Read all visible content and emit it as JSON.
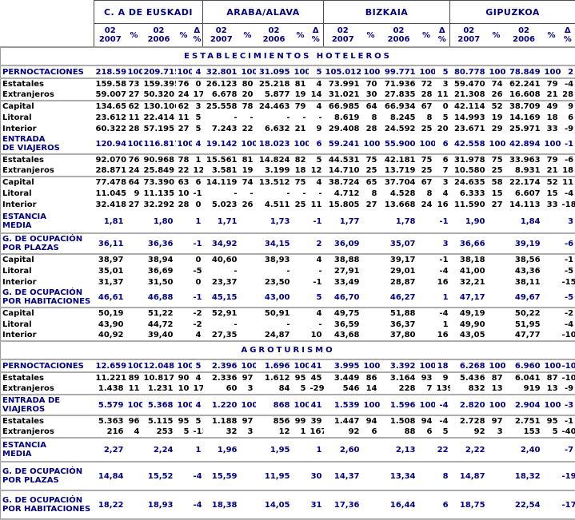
{
  "header": {
    "groups": [
      "C. A DE EUSKADI",
      "ARABA/ALAVA",
      "BIZKAIA",
      "GIPUZKOA"
    ],
    "col_2007": "02 2007",
    "col_2006": "02 2006",
    "col_pct": "%",
    "col_delta": "Δ %"
  },
  "colors": {
    "navy_text": "#000080",
    "black_text": "#000000",
    "separator_line": "#adadad",
    "header_border": "#4d4d4d"
  },
  "sections": [
    {
      "banner": "ESTABLECIMIENTOS HOTELEROS",
      "rows": [
        {
          "label": "PERNOCTACIONES",
          "style": "section",
          "sep": true,
          "cells": [
            "218.591",
            "100",
            "209.715",
            "100",
            "4",
            "32.801",
            "100",
            "31.095",
            "100",
            "5",
            "105.012",
            "100",
            "99.771",
            "100",
            "5",
            "80.778",
            "100",
            "78.849",
            "100",
            "2"
          ]
        },
        {
          "label": "Estatales",
          "style": "sub",
          "sep": false,
          "cells": [
            "159.584",
            "73",
            "159.395",
            "76",
            "0",
            "26.123",
            "80",
            "25.218",
            "81",
            "4",
            "73.991",
            "70",
            "71.936",
            "72",
            "3",
            "59.470",
            "74",
            "62.241",
            "79",
            "-4"
          ]
        },
        {
          "label": "Extranjeros",
          "style": "sub",
          "sep": true,
          "cells": [
            "59.007",
            "27",
            "50.320",
            "24",
            "17",
            "6.678",
            "20",
            "5.877",
            "19",
            "14",
            "31.021",
            "30",
            "27.835",
            "28",
            "11",
            "21.308",
            "26",
            "16.608",
            "21",
            "28"
          ]
        },
        {
          "label": "Capital",
          "style": "sub",
          "sep": false,
          "cells": [
            "134.657",
            "62",
            "130.106",
            "62",
            "3",
            "25.558",
            "78",
            "24.463",
            "79",
            "4",
            "66.985",
            "64",
            "66.934",
            "67",
            "0",
            "42.114",
            "52",
            "38.709",
            "49",
            "9"
          ]
        },
        {
          "label": "Litoral",
          "style": "sub",
          "sep": false,
          "cells": [
            "23.612",
            "11",
            "22.414",
            "11",
            "5",
            "-",
            "-",
            "-",
            "-",
            "-",
            "8.619",
            "8",
            "8.245",
            "8",
            "5",
            "14.993",
            "19",
            "14.169",
            "18",
            "6"
          ]
        },
        {
          "label": "Interior",
          "style": "sub",
          "sep": false,
          "cells": [
            "60.322",
            "28",
            "57.195",
            "27",
            "5",
            "7.243",
            "22",
            "6.632",
            "21",
            "9",
            "29.408",
            "28",
            "24.592",
            "25",
            "20",
            "23.671",
            "29",
            "25.971",
            "33",
            "-9"
          ]
        },
        {
          "label": "ENTRADA\nDE VIAJEROS",
          "style": "section",
          "sep": true,
          "cells": [
            "120.941",
            "100",
            "116.817",
            "100",
            "4",
            "19.142",
            "100",
            "18.023",
            "100",
            "6",
            "59.241",
            "100",
            "55.900",
            "100",
            "6",
            "42.558",
            "100",
            "42.894",
            "100",
            "-1"
          ]
        },
        {
          "label": "Estatales",
          "style": "sub",
          "sep": false,
          "cells": [
            "92.070",
            "76",
            "90.968",
            "78",
            "1",
            "15.561",
            "81",
            "14.824",
            "82",
            "5",
            "44.531",
            "75",
            "42.181",
            "75",
            "6",
            "31.978",
            "75",
            "33.963",
            "79",
            "-6"
          ]
        },
        {
          "label": "Extranjeros",
          "style": "sub",
          "sep": true,
          "cells": [
            "28.871",
            "24",
            "25.849",
            "22",
            "12",
            "3.581",
            "19",
            "3.199",
            "18",
            "12",
            "14.710",
            "25",
            "13.719",
            "25",
            "7",
            "10.580",
            "25",
            "8.931",
            "21",
            "18"
          ]
        },
        {
          "label": "Capital",
          "style": "sub",
          "sep": false,
          "cells": [
            "77.478",
            "64",
            "73.390",
            "63",
            "6",
            "14.119",
            "74",
            "13.512",
            "75",
            "4",
            "38.724",
            "65",
            "37.704",
            "67",
            "3",
            "24.635",
            "58",
            "22.174",
            "52",
            "11"
          ]
        },
        {
          "label": "Litoral",
          "style": "sub",
          "sep": false,
          "cells": [
            "11.045",
            "9",
            "11.135",
            "10",
            "-1",
            "-",
            "-",
            "-",
            "-",
            "-",
            "4.712",
            "8",
            "4.528",
            "8",
            "4",
            "6.333",
            "15",
            "6.607",
            "15",
            "-4"
          ]
        },
        {
          "label": "Interior",
          "style": "sub",
          "sep": false,
          "cells": [
            "32.418",
            "27",
            "32.292",
            "28",
            "0",
            "5.023",
            "26",
            "4.511",
            "25",
            "11",
            "15.805",
            "27",
            "13.668",
            "24",
            "16",
            "11.590",
            "27",
            "14.113",
            "33",
            "-18"
          ]
        },
        {
          "label": "ESTANCIA\nMEDIA",
          "style": "section",
          "sep": true,
          "padsm": true,
          "cells": [
            "1,81",
            "",
            "1,80",
            "",
            "1",
            "1,71",
            "",
            "1,73",
            "",
            "-1",
            "1,77",
            "",
            "1,78",
            "",
            "-1",
            "1,90",
            "",
            "1,84",
            "",
            "3"
          ]
        },
        {
          "label": "G. DE OCUPACIÓN\nPOR PLAZAS",
          "style": "section",
          "sep": true,
          "cells": [
            "36,11",
            "",
            "36,36",
            "",
            "-1",
            "34,92",
            "",
            "34,15",
            "",
            "2",
            "36,09",
            "",
            "35,07",
            "",
            "3",
            "36,66",
            "",
            "39,19",
            "",
            "-6"
          ]
        },
        {
          "label": "Capital",
          "style": "sub",
          "sep": false,
          "cells": [
            "38,97",
            "",
            "38,94",
            "",
            "0",
            "40,60",
            "",
            "38,93",
            "",
            "4",
            "38,88",
            "",
            "39,17",
            "",
            "-1",
            "38,18",
            "",
            "38,56",
            "",
            "-1"
          ]
        },
        {
          "label": "Litoral",
          "style": "sub",
          "sep": false,
          "cells": [
            "35,01",
            "",
            "36,69",
            "",
            "-5",
            "-",
            "",
            "-",
            "",
            "-",
            "27,91",
            "",
            "29,01",
            "",
            "-4",
            "41,00",
            "",
            "43,36",
            "",
            "-5"
          ]
        },
        {
          "label": "Interior",
          "style": "sub",
          "sep": false,
          "cells": [
            "31,37",
            "",
            "31,50",
            "",
            "0",
            "23,37",
            "",
            "23,50",
            "",
            "-1",
            "33,49",
            "",
            "28,87",
            "",
            "16",
            "32,21",
            "",
            "38,11",
            "",
            "-15"
          ]
        },
        {
          "label": "G. DE OCUPACIÓN\nPOR HABITACIONES",
          "style": "section",
          "sep": true,
          "cells": [
            "46,61",
            "",
            "46,88",
            "",
            "-1",
            "45,15",
            "",
            "43,00",
            "",
            "5",
            "46,70",
            "",
            "46,27",
            "",
            "1",
            "47,17",
            "",
            "49,67",
            "",
            "-5"
          ]
        },
        {
          "label": "Capital",
          "style": "sub",
          "sep": false,
          "cells": [
            "50,19",
            "",
            "51,22",
            "",
            "-2",
            "52,91",
            "",
            "50,91",
            "",
            "4",
            "49,75",
            "",
            "51,88",
            "",
            "-4",
            "49,19",
            "",
            "50,22",
            "",
            "-2"
          ]
        },
        {
          "label": "Litoral",
          "style": "sub",
          "sep": false,
          "cells": [
            "43,90",
            "",
            "44,72",
            "",
            "-2",
            "-",
            "",
            "-",
            "",
            "-",
            "36,59",
            "",
            "36,37",
            "",
            "1",
            "49,90",
            "",
            "51,95",
            "",
            "-4"
          ]
        },
        {
          "label": "Interior",
          "style": "sub",
          "sep": true,
          "cells": [
            "40,92",
            "",
            "39,40",
            "",
            "4",
            "27,35",
            "",
            "24,87",
            "",
            "10",
            "43,68",
            "",
            "37,80",
            "",
            "16",
            "43,05",
            "",
            "47,77",
            "",
            "-10"
          ]
        }
      ]
    },
    {
      "banner": "AGROTURISMO",
      "rows": [
        {
          "label": "PERNOCTACIONES",
          "style": "section",
          "sep": true,
          "cells": [
            "12.659",
            "100",
            "12.048",
            "100",
            "5",
            "2.396",
            "100",
            "1.696",
            "100",
            "41",
            "3.995",
            "100",
            "3.392",
            "100",
            "18",
            "6.268",
            "100",
            "6.960",
            "100",
            "-10"
          ]
        },
        {
          "label": "Estatales",
          "style": "sub",
          "sep": false,
          "cells": [
            "11.221",
            "89",
            "10.817",
            "90",
            "4",
            "2.336",
            "97",
            "1.612",
            "95",
            "45",
            "3.449",
            "86",
            "3.164",
            "93",
            "9",
            "5.436",
            "87",
            "6.041",
            "87",
            "-10"
          ]
        },
        {
          "label": "Extranjeros",
          "style": "sub",
          "sep": true,
          "cells": [
            "1.438",
            "11",
            "1.231",
            "10",
            "17",
            "60",
            "3",
            "84",
            "5",
            "-29",
            "546",
            "14",
            "228",
            "7",
            "139",
            "832",
            "13",
            "919",
            "13",
            "-9"
          ]
        },
        {
          "label": "ENTRADA DE\nVIAJEROS",
          "style": "section",
          "sep": true,
          "cells": [
            "5.579",
            "100",
            "5.368",
            "100",
            "4",
            "1.220",
            "100",
            "868",
            "100",
            "41",
            "1.539",
            "100",
            "1.596",
            "100",
            "-4",
            "2.820",
            "100",
            "2.904",
            "100",
            "-3"
          ]
        },
        {
          "label": "Estatales",
          "style": "sub",
          "sep": false,
          "cells": [
            "5.363",
            "96",
            "5.115",
            "95",
            "5",
            "1.188",
            "97",
            "856",
            "99",
            "39",
            "1.447",
            "94",
            "1.508",
            "94",
            "-4",
            "2.728",
            "97",
            "2.751",
            "95",
            "-1"
          ]
        },
        {
          "label": "Extranjeros",
          "style": "sub",
          "sep": true,
          "cells": [
            "216",
            "4",
            "253",
            "5",
            "-15",
            "32",
            "3",
            "12",
            "1",
            "167",
            "92",
            "6",
            "88",
            "6",
            "5",
            "92",
            "3",
            "153",
            "5",
            "-40"
          ]
        },
        {
          "label": "ESTANCIA\nMEDIA",
          "style": "section",
          "sep": true,
          "padsm": true,
          "cells": [
            "2,27",
            "",
            "2,24",
            "",
            "1",
            "1,96",
            "",
            "1,95",
            "",
            "1",
            "2,60",
            "",
            "2,13",
            "",
            "22",
            "2,22",
            "",
            "2,40",
            "",
            "-7"
          ]
        },
        {
          "label": "G. DE OCUPACIÓN\nPOR PLAZAS",
          "style": "section",
          "sep": true,
          "pad": true,
          "cells": [
            "14,84",
            "",
            "15,52",
            "",
            "-4",
            "15,59",
            "",
            "11,95",
            "",
            "30",
            "14,37",
            "",
            "13,34",
            "",
            "8",
            "14,87",
            "",
            "18,32",
            "",
            "-19"
          ]
        },
        {
          "label": "G. DE OCUPACIÓN\nPOR HABITACIONES",
          "style": "section",
          "sep": true,
          "pad": true,
          "cells": [
            "18,22",
            "",
            "18,93",
            "",
            "-4",
            "18,38",
            "",
            "14,05",
            "",
            "31",
            "17,36",
            "",
            "16,44",
            "",
            "6",
            "18,75",
            "",
            "22,54",
            "",
            "-17"
          ]
        }
      ]
    }
  ]
}
